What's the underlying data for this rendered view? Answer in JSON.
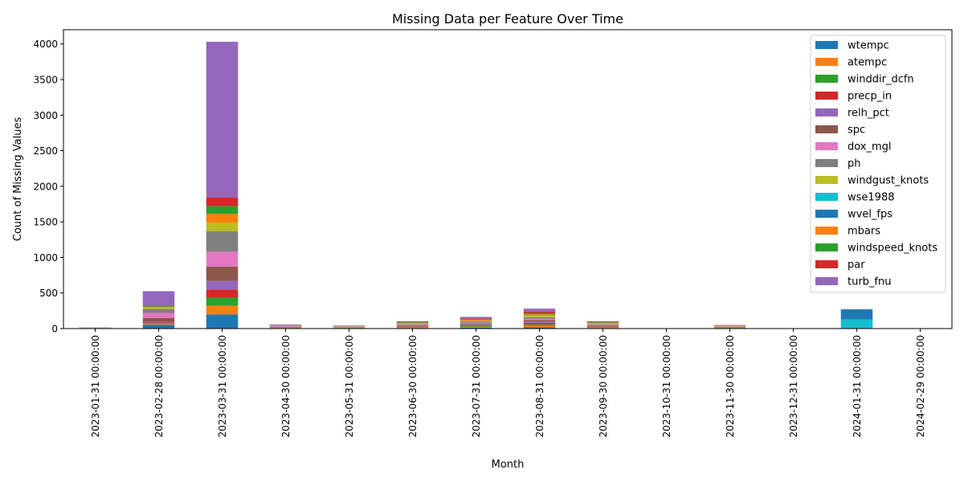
{
  "chart_data": {
    "type": "bar",
    "stacked": true,
    "title": "Missing Data per Feature Over Time",
    "xlabel": "Month",
    "ylabel": "Count of Missing Values",
    "ylim": [
      0,
      4200
    ],
    "yticks": [
      0,
      500,
      1000,
      1500,
      2000,
      2500,
      3000,
      3500,
      4000
    ],
    "legend_position": "top-right",
    "grid": false,
    "categories": [
      "2023-01-31 00:00:00",
      "2023-02-28 00:00:00",
      "2023-03-31 00:00:00",
      "2023-04-30 00:00:00",
      "2023-05-31 00:00:00",
      "2023-06-30 00:00:00",
      "2023-07-31 00:00:00",
      "2023-08-31 00:00:00",
      "2023-09-30 00:00:00",
      "2023-10-31 00:00:00",
      "2023-11-30 00:00:00",
      "2023-12-31 00:00:00",
      "2024-01-31 00:00:00",
      "2024-02-29 00:00:00"
    ],
    "series": [
      {
        "name": "wtempc",
        "color": "#1f77b4",
        "values": [
          3,
          55,
          200,
          5,
          4,
          8,
          12,
          20,
          8,
          0,
          4,
          0,
          0,
          0
        ]
      },
      {
        "name": "atempc",
        "color": "#ff7f0e",
        "values": [
          1,
          10,
          120,
          4,
          3,
          8,
          12,
          20,
          8,
          0,
          4,
          0,
          0,
          0
        ]
      },
      {
        "name": "winddir_dcfn",
        "color": "#2ca02c",
        "values": [
          1,
          10,
          110,
          4,
          3,
          8,
          12,
          20,
          8,
          0,
          4,
          0,
          0,
          0
        ]
      },
      {
        "name": "precp_in",
        "color": "#d62728",
        "values": [
          1,
          10,
          120,
          4,
          3,
          8,
          12,
          20,
          8,
          0,
          4,
          0,
          0,
          0
        ]
      },
      {
        "name": "relh_pct",
        "color": "#9467bd",
        "values": [
          1,
          10,
          120,
          4,
          3,
          8,
          12,
          20,
          8,
          0,
          4,
          0,
          0,
          0
        ]
      },
      {
        "name": "spc",
        "color": "#8c564b",
        "values": [
          1,
          55,
          200,
          5,
          4,
          8,
          12,
          20,
          8,
          0,
          4,
          0,
          0,
          0
        ]
      },
      {
        "name": "dox_mgl",
        "color": "#e377c2",
        "values": [
          1,
          70,
          210,
          8,
          4,
          8,
          12,
          20,
          8,
          0,
          4,
          0,
          0,
          0
        ]
      },
      {
        "name": "ph",
        "color": "#7f7f7f",
        "values": [
          1,
          55,
          290,
          5,
          4,
          8,
          12,
          20,
          8,
          0,
          4,
          0,
          0,
          0
        ]
      },
      {
        "name": "windgust_knots",
        "color": "#bcbd22",
        "values": [
          1,
          20,
          120,
          4,
          3,
          8,
          12,
          20,
          8,
          0,
          4,
          0,
          0,
          0
        ]
      },
      {
        "name": "wse1988",
        "color": "#17becf",
        "values": [
          1,
          0,
          0,
          0,
          0,
          0,
          0,
          0,
          0,
          0,
          0,
          0,
          130,
          0
        ]
      },
      {
        "name": "wvel_fps",
        "color": "#1f77b4",
        "values": [
          1,
          0,
          0,
          0,
          0,
          0,
          0,
          0,
          0,
          0,
          0,
          0,
          140,
          0
        ]
      },
      {
        "name": "mbars",
        "color": "#ff7f0e",
        "values": [
          1,
          10,
          120,
          4,
          3,
          8,
          12,
          20,
          8,
          0,
          4,
          0,
          0,
          0
        ]
      },
      {
        "name": "windspeed_knots",
        "color": "#2ca02c",
        "values": [
          1,
          10,
          110,
          4,
          3,
          8,
          12,
          20,
          8,
          0,
          4,
          0,
          0,
          0
        ]
      },
      {
        "name": "par",
        "color": "#d62728",
        "values": [
          1,
          10,
          120,
          4,
          3,
          8,
          12,
          20,
          8,
          0,
          4,
          0,
          0,
          0
        ]
      },
      {
        "name": "turb_fnu",
        "color": "#9467bd",
        "values": [
          1,
          200,
          2190,
          3,
          3,
          6,
          20,
          40,
          6,
          0,
          4,
          0,
          0,
          0
        ]
      }
    ]
  }
}
